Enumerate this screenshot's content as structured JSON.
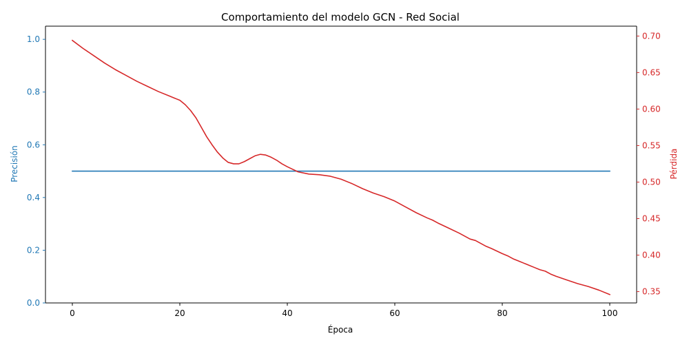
{
  "chart_data": {
    "type": "line",
    "title": "Comportamiento del modelo GCN - Red Social",
    "xlabel": "Época",
    "ylabel_left": "Precisión",
    "ylabel_right": "Pérdida",
    "xlim": [
      -5,
      105
    ],
    "ylim_left": [
      0,
      1.05
    ],
    "ylim_right": [
      0.3345,
      0.7135
    ],
    "x_ticks": [
      0,
      20,
      40,
      60,
      80,
      100
    ],
    "y_ticks_left": [
      0.0,
      0.2,
      0.4,
      0.6,
      0.8,
      1.0
    ],
    "y_ticks_left_labels": [
      "0.0",
      "0.2",
      "0.4",
      "0.6",
      "0.8",
      "1.0"
    ],
    "y_ticks_right": [
      0.35,
      0.4,
      0.45,
      0.5,
      0.55,
      0.6,
      0.65,
      0.7
    ],
    "y_ticks_right_labels": [
      "0.35",
      "0.40",
      "0.45",
      "0.50",
      "0.55",
      "0.60",
      "0.65",
      "0.70"
    ],
    "grid": false,
    "colors": {
      "accuracy": "#1f77b4",
      "loss": "#d62728",
      "axis": "#000000"
    },
    "series": [
      {
        "axis": "left",
        "x": [
          0,
          100
        ],
        "values": [
          0.5,
          0.5
        ]
      },
      {
        "axis": "right",
        "x": [
          0,
          2,
          4,
          6,
          8,
          10,
          12,
          14,
          16,
          18,
          20,
          21,
          22,
          23,
          24,
          25,
          26,
          27,
          28,
          29,
          30,
          31,
          32,
          33,
          34,
          35,
          36,
          37,
          38,
          39,
          40,
          42,
          44,
          46,
          48,
          50,
          52,
          54,
          56,
          58,
          60,
          62,
          64,
          66,
          67,
          68,
          70,
          72,
          74,
          75,
          76,
          77,
          78,
          80,
          81,
          82,
          83,
          84,
          85,
          86,
          87,
          88,
          89,
          90,
          92,
          94,
          96,
          98,
          100
        ],
        "values": [
          0.694,
          0.683,
          0.673,
          0.663,
          0.654,
          0.646,
          0.638,
          0.631,
          0.624,
          0.618,
          0.612,
          0.606,
          0.598,
          0.588,
          0.575,
          0.562,
          0.551,
          0.541,
          0.533,
          0.527,
          0.525,
          0.525,
          0.528,
          0.532,
          0.536,
          0.538,
          0.537,
          0.534,
          0.53,
          0.525,
          0.521,
          0.514,
          0.511,
          0.51,
          0.508,
          0.504,
          0.498,
          0.491,
          0.485,
          0.48,
          0.474,
          0.466,
          0.458,
          0.451,
          0.448,
          0.444,
          0.437,
          0.43,
          0.422,
          0.42,
          0.416,
          0.412,
          0.409,
          0.402,
          0.399,
          0.395,
          0.392,
          0.389,
          0.386,
          0.383,
          0.38,
          0.378,
          0.374,
          0.371,
          0.366,
          0.361,
          0.357,
          0.352,
          0.346
        ]
      }
    ]
  }
}
